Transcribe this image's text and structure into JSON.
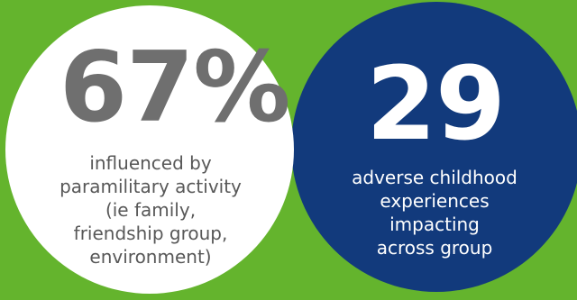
{
  "colors": {
    "background": "#64b42d",
    "left_circle": "#ffffff",
    "right_circle": "#123a7c",
    "left_value_text": "#6f6f6f",
    "left_caption_text": "#585858",
    "right_text": "#ffffff"
  },
  "stats": [
    {
      "value": "67%",
      "caption_lines": [
        "influenced by",
        "paramilitary activity",
        "(ie family,",
        "friendship group,",
        "environment)"
      ]
    },
    {
      "value": "29",
      "caption_lines": [
        "adverse childhood",
        "experiences",
        "impacting",
        "across group"
      ]
    }
  ]
}
